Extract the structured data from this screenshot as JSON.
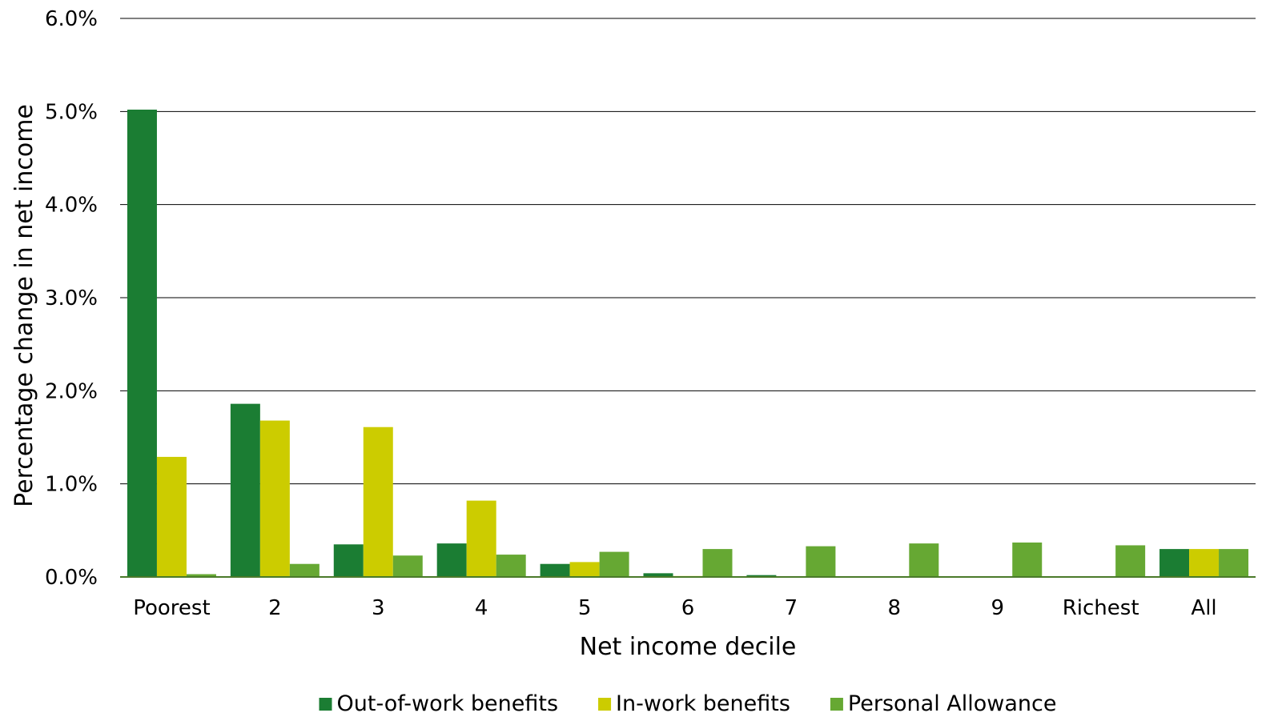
{
  "chart_data": {
    "type": "bar",
    "title": "",
    "xlabel": "Net income decile",
    "ylabel": "Percentage change in net income",
    "ylim": [
      0,
      6
    ],
    "yticks": [
      "0.0%",
      "1.0%",
      "2.0%",
      "3.0%",
      "4.0%",
      "5.0%",
      "6.0%"
    ],
    "grid": true,
    "legend_position": "bottom",
    "categories": [
      "Poorest",
      "2",
      "3",
      "4",
      "5",
      "6",
      "7",
      "8",
      "9",
      "Richest",
      "All"
    ],
    "series": [
      {
        "name": "Out-of-work benefits",
        "color": "#1b7d33",
        "values": [
          5.02,
          1.86,
          0.35,
          0.36,
          0.14,
          0.04,
          0.02,
          0.0,
          0.0,
          0.0,
          0.3
        ]
      },
      {
        "name": "In-work benefits",
        "color": "#cccc00",
        "values": [
          1.29,
          1.68,
          1.61,
          0.82,
          0.16,
          0.01,
          0.0,
          0.0,
          0.0,
          0.0,
          0.3
        ]
      },
      {
        "name": "Personal Allowance",
        "color": "#66a833",
        "values": [
          0.03,
          0.14,
          0.23,
          0.24,
          0.27,
          0.3,
          0.33,
          0.36,
          0.37,
          0.34,
          0.3
        ]
      }
    ]
  }
}
